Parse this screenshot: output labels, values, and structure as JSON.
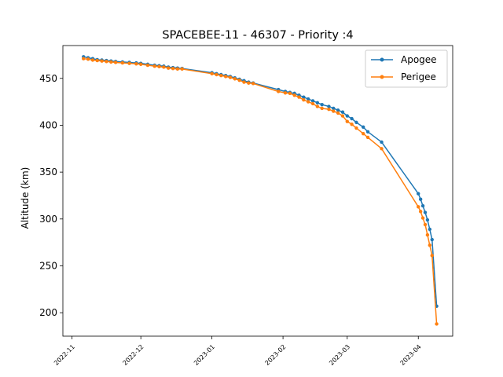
{
  "chart_data": {
    "type": "line",
    "title": "SPACEBEE-11 - 46307 - Priority :4",
    "xlabel": "",
    "ylabel": "Altitude (km)",
    "x_type": "date",
    "xlim": [
      "2022-10-28",
      "2023-04-16"
    ],
    "ylim": [
      175,
      485
    ],
    "x_ticks": [
      "2022-11",
      "2022-12",
      "2023-01",
      "2023-02",
      "2023-03",
      "2023-04"
    ],
    "y_ticks": [
      200,
      250,
      300,
      350,
      400,
      450
    ],
    "grid": false,
    "legend_position": "top-right",
    "series": [
      {
        "name": "Apogee",
        "color": "#1f77b4",
        "points": [
          [
            "2022-11-06",
            473
          ],
          [
            "2022-11-08",
            472
          ],
          [
            "2022-11-10",
            471
          ],
          [
            "2022-11-12",
            470
          ],
          [
            "2022-11-14",
            469.5
          ],
          [
            "2022-11-16",
            469
          ],
          [
            "2022-11-18",
            468.5
          ],
          [
            "2022-11-20",
            468
          ],
          [
            "2022-11-23",
            467.5
          ],
          [
            "2022-11-26",
            467
          ],
          [
            "2022-11-29",
            466.5
          ],
          [
            "2022-12-01",
            466
          ],
          [
            "2022-12-04",
            465
          ],
          [
            "2022-12-07",
            464
          ],
          [
            "2022-12-09",
            463.5
          ],
          [
            "2022-12-11",
            463
          ],
          [
            "2022-12-13",
            462
          ],
          [
            "2022-12-15",
            461.5
          ],
          [
            "2022-12-17",
            461
          ],
          [
            "2022-12-19",
            460.5
          ],
          [
            "2023-01-01",
            456
          ],
          [
            "2023-01-03",
            455
          ],
          [
            "2023-01-05",
            454
          ],
          [
            "2023-01-07",
            453
          ],
          [
            "2023-01-09",
            452
          ],
          [
            "2023-01-11",
            450.5
          ],
          [
            "2023-01-13",
            449
          ],
          [
            "2023-01-15",
            447.5
          ],
          [
            "2023-01-17",
            446
          ],
          [
            "2023-01-19",
            445
          ],
          [
            "2023-01-30",
            438
          ],
          [
            "2023-02-02",
            436
          ],
          [
            "2023-02-04",
            435
          ],
          [
            "2023-02-06",
            434
          ],
          [
            "2023-02-08",
            432
          ],
          [
            "2023-02-10",
            430
          ],
          [
            "2023-02-12",
            428
          ],
          [
            "2023-02-14",
            426
          ],
          [
            "2023-02-16",
            424
          ],
          [
            "2023-02-18",
            422
          ],
          [
            "2023-02-21",
            420
          ],
          [
            "2023-02-23",
            418
          ],
          [
            "2023-02-25",
            416
          ],
          [
            "2023-02-27",
            414
          ],
          [
            "2023-03-01",
            410
          ],
          [
            "2023-03-03",
            407
          ],
          [
            "2023-03-05",
            403
          ],
          [
            "2023-03-08",
            398
          ],
          [
            "2023-03-10",
            393
          ],
          [
            "2023-03-16",
            382
          ],
          [
            "2023-04-01",
            327
          ],
          [
            "2023-04-02",
            321
          ],
          [
            "2023-04-03",
            314
          ],
          [
            "2023-04-04",
            307
          ],
          [
            "2023-04-05",
            299
          ],
          [
            "2023-04-06",
            289
          ],
          [
            "2023-04-07",
            278
          ],
          [
            "2023-04-09",
            207
          ]
        ]
      },
      {
        "name": "Perigee",
        "color": "#ff7f0e",
        "points": [
          [
            "2022-11-06",
            471
          ],
          [
            "2022-11-08",
            470.5
          ],
          [
            "2022-11-10",
            469.5
          ],
          [
            "2022-11-12",
            469
          ],
          [
            "2022-11-14",
            468.5
          ],
          [
            "2022-11-16",
            468
          ],
          [
            "2022-11-18",
            467.5
          ],
          [
            "2022-11-20",
            467
          ],
          [
            "2022-11-23",
            466.5
          ],
          [
            "2022-11-26",
            466
          ],
          [
            "2022-11-29",
            465.5
          ],
          [
            "2022-12-01",
            465
          ],
          [
            "2022-12-04",
            464
          ],
          [
            "2022-12-07",
            463
          ],
          [
            "2022-12-09",
            462.5
          ],
          [
            "2022-12-11",
            462
          ],
          [
            "2022-12-13",
            461
          ],
          [
            "2022-12-15",
            460.5
          ],
          [
            "2022-12-17",
            460
          ],
          [
            "2022-12-19",
            460
          ],
          [
            "2023-01-01",
            455
          ],
          [
            "2023-01-03",
            454
          ],
          [
            "2023-01-05",
            453
          ],
          [
            "2023-01-07",
            452
          ],
          [
            "2023-01-09",
            451
          ],
          [
            "2023-01-11",
            449.5
          ],
          [
            "2023-01-13",
            448
          ],
          [
            "2023-01-15",
            446
          ],
          [
            "2023-01-17",
            445
          ],
          [
            "2023-01-19",
            444.5
          ],
          [
            "2023-01-30",
            436
          ],
          [
            "2023-02-02",
            434.5
          ],
          [
            "2023-02-04",
            434
          ],
          [
            "2023-02-06",
            432
          ],
          [
            "2023-02-08",
            430
          ],
          [
            "2023-02-10",
            427
          ],
          [
            "2023-02-12",
            425
          ],
          [
            "2023-02-14",
            423
          ],
          [
            "2023-02-16",
            420
          ],
          [
            "2023-02-18",
            418
          ],
          [
            "2023-02-21",
            417
          ],
          [
            "2023-02-23",
            415
          ],
          [
            "2023-02-25",
            413
          ],
          [
            "2023-02-27",
            410
          ],
          [
            "2023-03-01",
            404
          ],
          [
            "2023-03-03",
            401
          ],
          [
            "2023-03-05",
            397
          ],
          [
            "2023-03-08",
            391
          ],
          [
            "2023-03-10",
            387
          ],
          [
            "2023-03-16",
            375
          ],
          [
            "2023-04-01",
            313
          ],
          [
            "2023-04-02",
            308
          ],
          [
            "2023-04-03",
            301
          ],
          [
            "2023-04-04",
            294
          ],
          [
            "2023-04-05",
            283
          ],
          [
            "2023-04-06",
            272
          ],
          [
            "2023-04-07",
            261
          ],
          [
            "2023-04-09",
            188
          ]
        ]
      }
    ]
  }
}
